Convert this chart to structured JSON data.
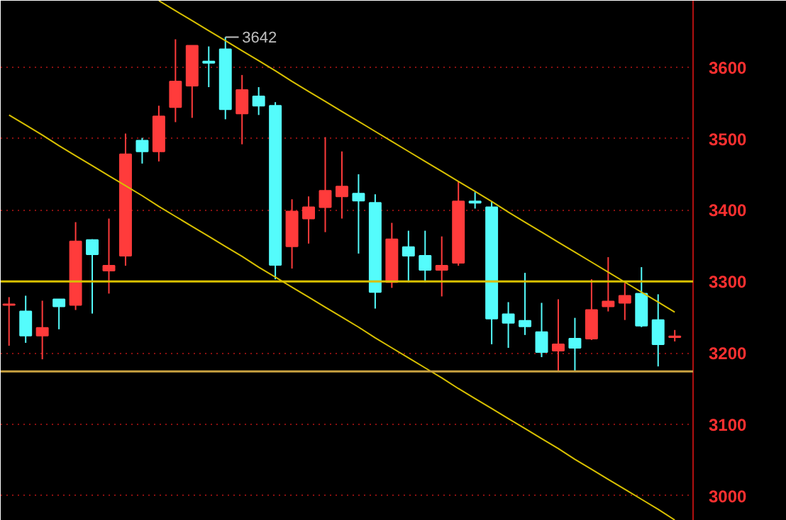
{
  "chart_data": {
    "type": "candlestick",
    "categories": [
      null,
      null,
      null,
      null,
      null,
      null,
      null,
      null,
      null,
      null,
      null,
      null,
      null,
      null,
      null,
      null,
      null,
      null,
      null,
      null,
      null,
      null,
      null,
      null,
      null,
      null,
      null,
      null,
      null,
      null,
      null,
      null,
      null,
      null,
      null,
      null,
      null,
      null,
      null,
      null,
      null
    ],
    "ohlc": [
      [
        3267,
        3278,
        3210,
        3268
      ],
      [
        3258,
        3280,
        3214,
        3224
      ],
      [
        3224,
        3273,
        3191,
        3235
      ],
      [
        3275,
        3275,
        3233,
        3265
      ],
      [
        3267,
        3383,
        3260,
        3356
      ],
      [
        3358,
        3359,
        3255,
        3338
      ],
      [
        3315,
        3388,
        3283,
        3322
      ],
      [
        3336,
        3507,
        3322,
        3478
      ],
      [
        3497,
        3501,
        3465,
        3482
      ],
      [
        3482,
        3546,
        3468,
        3531
      ],
      [
        3544,
        3639,
        3523,
        3580
      ],
      [
        3574,
        3630,
        3529,
        3630
      ],
      [
        3608,
        3629,
        3572,
        3606
      ],
      [
        3625,
        3642,
        3527,
        3541
      ],
      [
        3535,
        3589,
        3492,
        3568
      ],
      [
        3559,
        3572,
        3533,
        3546
      ],
      [
        3546,
        3551,
        3303,
        3323
      ],
      [
        3349,
        3415,
        3318,
        3398
      ],
      [
        3388,
        3419,
        3353,
        3404
      ],
      [
        3404,
        3502,
        3369,
        3427
      ],
      [
        3419,
        3482,
        3388,
        3433
      ],
      [
        3423,
        3450,
        3339,
        3413
      ],
      [
        3410,
        3422,
        3262,
        3285
      ],
      [
        3299,
        3382,
        3291,
        3359
      ],
      [
        3348,
        3371,
        3299,
        3336
      ],
      [
        3336,
        3371,
        3299,
        3316
      ],
      [
        3316,
        3363,
        3279,
        3322
      ],
      [
        3326,
        3440,
        3322,
        3412
      ],
      [
        3412,
        3425,
        3402,
        3410
      ],
      [
        3404,
        3412,
        3212,
        3248
      ],
      [
        3254,
        3271,
        3207,
        3242
      ],
      [
        3245,
        3312,
        3225,
        3237
      ],
      [
        3229,
        3270,
        3194,
        3201
      ],
      [
        3203,
        3275,
        3174,
        3212
      ],
      [
        3220,
        3249,
        3174,
        3207
      ],
      [
        3220,
        3303,
        3218,
        3260
      ],
      [
        3265,
        3334,
        3258,
        3272
      ],
      [
        3270,
        3298,
        3246,
        3280
      ],
      [
        3283,
        3320,
        3236,
        3238
      ],
      [
        3246,
        3282,
        3181,
        3212
      ],
      [
        3222,
        3232,
        3216,
        3223
      ]
    ],
    "colors": [
      "#ff3b3b",
      "#54fcfc",
      "#ff3b3b",
      "#54fcfc",
      "#ff3b3b",
      "#54fcfc",
      "#ff3b3b",
      "#ff3b3b",
      "#54fcfc",
      "#ff3b3b",
      "#ff3b3b",
      "#ff3b3b",
      "#54fcfc",
      "#54fcfc",
      "#ff3b3b",
      "#54fcfc",
      "#54fcfc",
      "#ff3b3b",
      "#ff3b3b",
      "#ff3b3b",
      "#ff3b3b",
      "#54fcfc",
      "#54fcfc",
      "#ff3b3b",
      "#54fcfc",
      "#54fcfc",
      "#ff3b3b",
      "#ff3b3b",
      "#54fcfc",
      "#54fcfc",
      "#54fcfc",
      "#54fcfc",
      "#54fcfc",
      "#ff3b3b",
      "#54fcfc",
      "#ff3b3b",
      "#ff3b3b",
      "#ff3b3b",
      "#54fcfc",
      "#54fcfc",
      "#ff3b3b"
    ],
    "series": [
      {
        "type": "line",
        "color": "#d8c000",
        "values": [
          null,
          null,
          null,
          null,
          null,
          null,
          null,
          null,
          null,
          3693,
          3679,
          3665,
          3651,
          3637,
          3623,
          3609,
          3595,
          3580,
          3566,
          3552,
          3538,
          3524,
          3510,
          3496,
          3482,
          3468,
          3454,
          3440,
          3426,
          3412,
          3397,
          3383,
          3369,
          3355,
          3341,
          3327,
          3313,
          3299,
          3285,
          3271,
          3257
        ]
      },
      {
        "type": "line",
        "color": "#d8c000",
        "values": [
          3533,
          3519,
          3505,
          3490,
          3476,
          3462,
          3448,
          3434,
          3420,
          3405,
          3391,
          3377,
          3363,
          3349,
          3335,
          3320,
          3306,
          3292,
          3278,
          3264,
          3250,
          3236,
          3221,
          3207,
          3193,
          3179,
          3165,
          3150,
          3136,
          3122,
          3108,
          3094,
          3080,
          3066,
          3051,
          3037,
          3023,
          3009,
          2995,
          2981,
          2966
        ]
      }
    ],
    "ref_lines": [
      {
        "axis": "y",
        "value": 3300,
        "color": "#d8c000"
      },
      {
        "axis": "y",
        "value": 3174,
        "color": "#c8a040"
      }
    ],
    "annotations": [
      "3642"
    ],
    "ylim": [
      2965,
      3693
    ],
    "yticks": [
      3000,
      3100,
      3200,
      3300,
      3400,
      3500,
      3600
    ],
    "grid": "y",
    "tick_labels": "y"
  }
}
